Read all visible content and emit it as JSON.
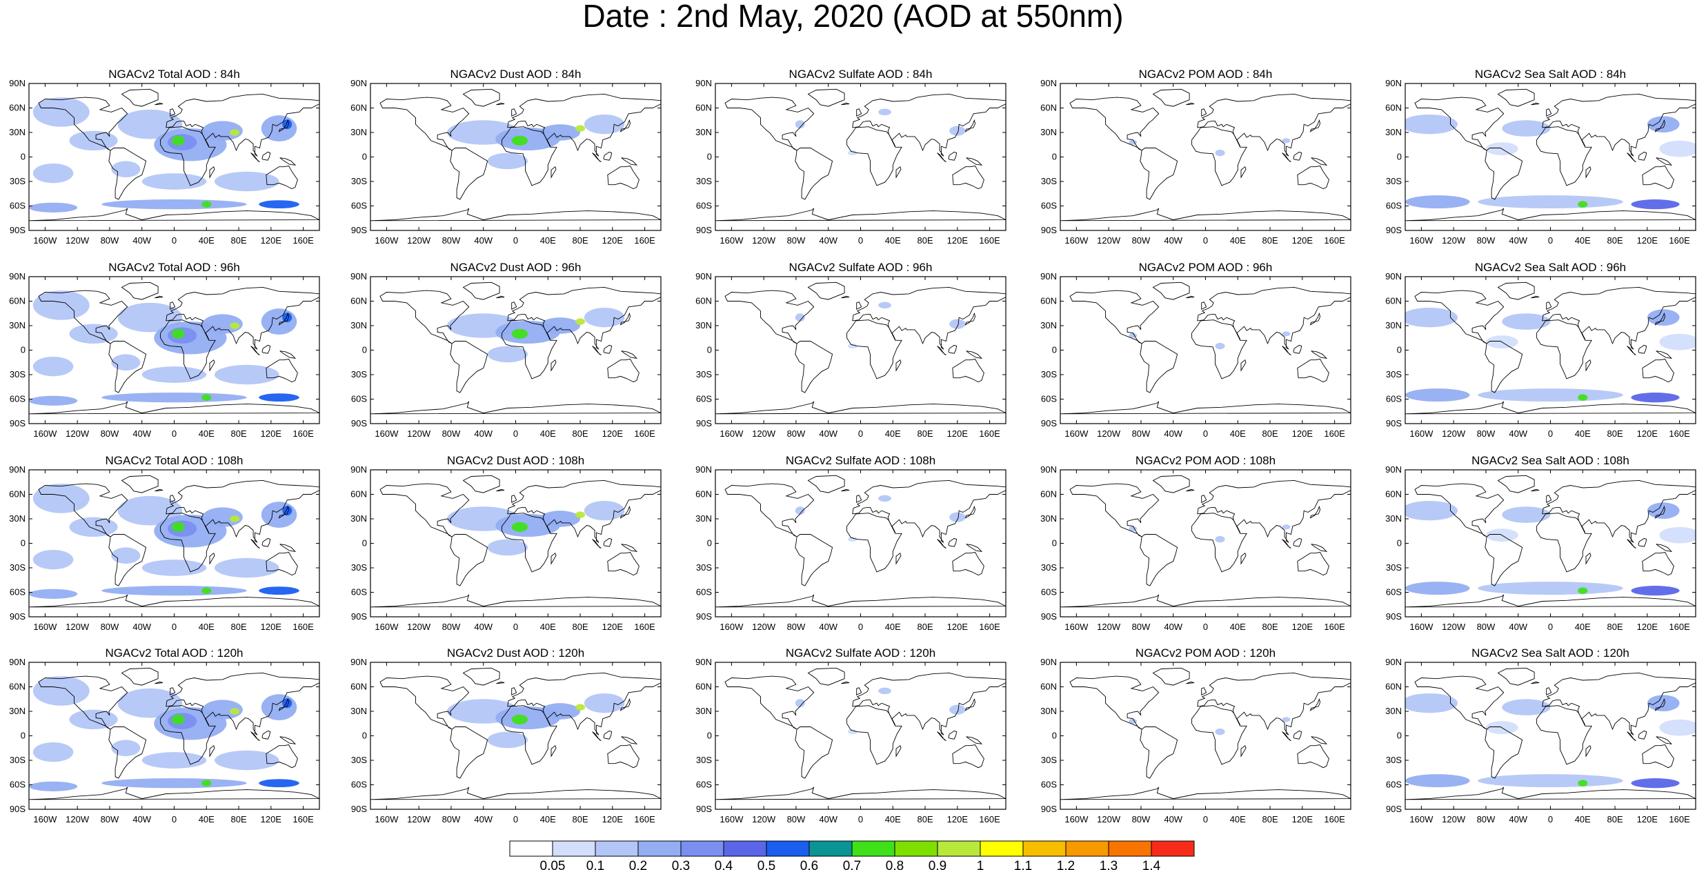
{
  "title": "Date : 2nd May, 2020 (AOD at 550nm)",
  "panels": [
    [
      "NGACv2 Total AOD : 84h",
      "NGACv2 Dust AOD : 84h",
      "NGACv2 Sulfate AOD : 84h",
      "NGACv2 POM AOD : 84h",
      "NGACv2 Sea Salt AOD : 84h"
    ],
    [
      "NGACv2 Total AOD : 96h",
      "NGACv2 Dust AOD : 96h",
      "NGACv2 Sulfate AOD : 96h",
      "NGACv2 POM AOD : 96h",
      "NGACv2 Sea Salt AOD : 96h"
    ],
    [
      "NGACv2 Total AOD : 108h",
      "NGACv2 Dust AOD : 108h",
      "NGACv2 Sulfate AOD : 108h",
      "NGACv2 POM AOD : 108h",
      "NGACv2 Sea Salt AOD : 108h"
    ],
    [
      "NGACv2 Total AOD : 120h",
      "NGACv2 Dust AOD : 120h",
      "NGACv2 Sulfate AOD : 120h",
      "NGACv2 POM AOD : 120h",
      "NGACv2 Sea Salt  AOD : 120h"
    ]
  ],
  "panel_types": [
    "total",
    "dust",
    "sulfate",
    "pom",
    "seasalt"
  ],
  "lat_ticks": [
    "90N",
    "60N",
    "30N",
    "0",
    "30S",
    "60S",
    "90S"
  ],
  "lon_ticks": [
    "160W",
    "120W",
    "80W",
    "40W",
    "0",
    "40E",
    "80E",
    "120E",
    "160E"
  ],
  "lon_tick_values": [
    -160,
    -120,
    -80,
    -40,
    0,
    40,
    80,
    120,
    160
  ],
  "lat_tick_values": [
    90,
    60,
    30,
    0,
    -30,
    -60,
    -90
  ],
  "colorbar": {
    "labels": [
      "0.05",
      "0.1",
      "0.2",
      "0.3",
      "0.4",
      "0.5",
      "0.6",
      "0.7",
      "0.8",
      "0.9",
      "1",
      "1.1",
      "1.2",
      "1.3",
      "1.4"
    ],
    "colors": [
      "#ffffff",
      "#d3defc",
      "#b3c6f7",
      "#94aef2",
      "#7a8ff0",
      "#5a66e8",
      "#1a5ef0",
      "#0a9494",
      "#3fe01a",
      "#7ee000",
      "#b8e83a",
      "#ffff00",
      "#f7be00",
      "#f79a00",
      "#f77400",
      "#f72b1a"
    ]
  },
  "colors": {
    "coast": "#000000",
    "frame": "#000000"
  }
}
